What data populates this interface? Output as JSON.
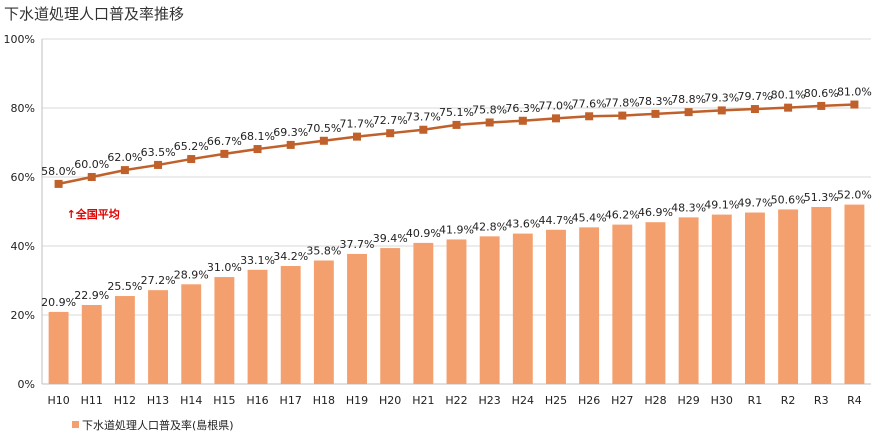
{
  "chart_data": {
    "type": "bar",
    "title": "下水道処理人口普及率推移",
    "categories": [
      "H10",
      "H11",
      "H12",
      "H13",
      "H14",
      "H15",
      "H16",
      "H17",
      "H18",
      "H19",
      "H20",
      "H21",
      "H22",
      "H23",
      "H24",
      "H25",
      "H26",
      "H27",
      "H28",
      "H29",
      "H30",
      "R1",
      "R2",
      "R3",
      "R4"
    ],
    "ylim": [
      0,
      100
    ],
    "yticks": [
      "0%",
      "20%",
      "40%",
      "60%",
      "80%",
      "100%"
    ],
    "grid": true,
    "series": [
      {
        "name": "下水道処理人口普及率(島根県)",
        "type": "bar",
        "color": "#f4a06e",
        "values": [
          20.9,
          22.9,
          25.5,
          27.2,
          28.9,
          31.0,
          33.1,
          34.2,
          35.8,
          37.7,
          39.4,
          40.9,
          41.9,
          42.8,
          43.6,
          44.7,
          45.4,
          46.2,
          46.9,
          48.3,
          49.1,
          49.7,
          50.6,
          51.3,
          52.0
        ]
      },
      {
        "type": "line",
        "color": "#c0602a",
        "values": [
          58.0,
          60.0,
          62.0,
          63.5,
          65.2,
          66.7,
          68.1,
          69.3,
          70.5,
          71.7,
          72.7,
          73.7,
          75.1,
          75.8,
          76.3,
          77.0,
          77.6,
          77.8,
          78.3,
          78.8,
          79.3,
          79.7,
          80.1,
          80.6,
          81.0
        ]
      }
    ],
    "annotation": {
      "text": "↑全国平均",
      "color": "#e00000"
    },
    "legend_position": "bottom-left"
  }
}
